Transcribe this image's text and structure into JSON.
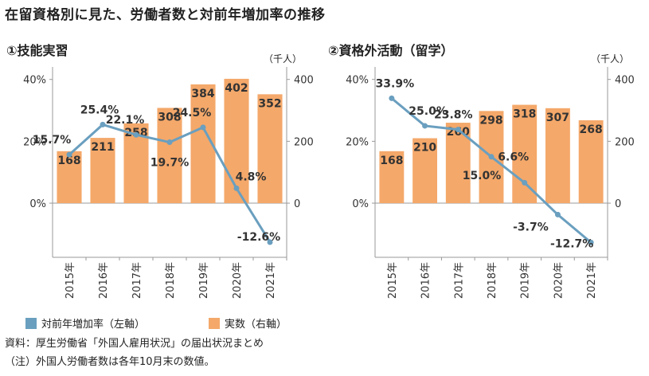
{
  "page": {
    "title": "在留資格別に見た、労働者数と対前年増加率の推移",
    "source_note": "資料：厚生労働省「外国人雇用状況」の届出状況まとめ",
    "footnote": "（注）外国人労働者数は各年10月末の数値。"
  },
  "legend": [
    {
      "label": "対前年増加率（左軸）",
      "color": "#6a9fbf"
    },
    {
      "label": "実数（右軸）",
      "color": "#f4a86a"
    }
  ],
  "colors": {
    "bar": "#f4a86a",
    "line": "#6a9fbf",
    "axis": "#999999",
    "marker": "#6a9fbf"
  },
  "chart_data": [
    {
      "type": "bar+line",
      "title": "①技能実習",
      "unit": "（千人）",
      "categories": [
        "2015年",
        "2016年",
        "2017年",
        "2018年",
        "2019年",
        "2020年",
        "2021年"
      ],
      "series": [
        {
          "name": "実数（右軸）",
          "axis": "right",
          "type": "bar",
          "values": [
            168,
            211,
            258,
            308,
            384,
            402,
            352
          ],
          "labels": [
            "168",
            "211",
            "258",
            "308",
            "384",
            "402",
            "352"
          ]
        },
        {
          "name": "対前年増加率（左軸）",
          "axis": "left",
          "type": "line",
          "values": [
            15.7,
            25.4,
            22.1,
            19.7,
            24.5,
            4.8,
            -12.6
          ],
          "labels": [
            "15.7%",
            "25.4%",
            "22.1%",
            "19.7%",
            "24.5%",
            "4.8%",
            "-12.6%"
          ]
        }
      ],
      "left_axis": {
        "range": [
          -17.5,
          42.5
        ],
        "ticks": [
          0,
          20,
          40
        ],
        "tick_labels": [
          "0%",
          "20%",
          "40%"
        ]
      },
      "right_axis": {
        "range": [
          -175,
          425
        ],
        "ticks": [
          0,
          200,
          400
        ],
        "tick_labels": [
          "0",
          "200",
          "400"
        ]
      }
    },
    {
      "type": "bar+line",
      "title": "②資格外活動（留学）",
      "unit": "（千人）",
      "categories": [
        "2015年",
        "2016年",
        "2017年",
        "2018年",
        "2019年",
        "2020年",
        "2021年"
      ],
      "series": [
        {
          "name": "実数（右軸）",
          "axis": "right",
          "type": "bar",
          "values": [
            168,
            210,
            260,
            298,
            318,
            307,
            268
          ],
          "labels": [
            "168",
            "210",
            "260",
            "298",
            "318",
            "307",
            "268"
          ]
        },
        {
          "name": "対前年増加率（左軸）",
          "axis": "left",
          "type": "line",
          "values": [
            33.9,
            25.0,
            23.8,
            15.0,
            6.6,
            -3.7,
            -12.7
          ],
          "labels": [
            "33.9%",
            "25.0%",
            "23.8%",
            "15.0%",
            "6.6%",
            "-3.7%",
            "-12.7%"
          ]
        }
      ],
      "left_axis": {
        "range": [
          -17.5,
          42.5
        ],
        "ticks": [
          0,
          20,
          40
        ],
        "tick_labels": [
          "0%",
          "20%",
          "40%"
        ]
      },
      "right_axis": {
        "range": [
          -175,
          425
        ],
        "ticks": [
          0,
          200,
          400
        ],
        "tick_labels": [
          "0",
          "200",
          "400"
        ]
      }
    }
  ]
}
